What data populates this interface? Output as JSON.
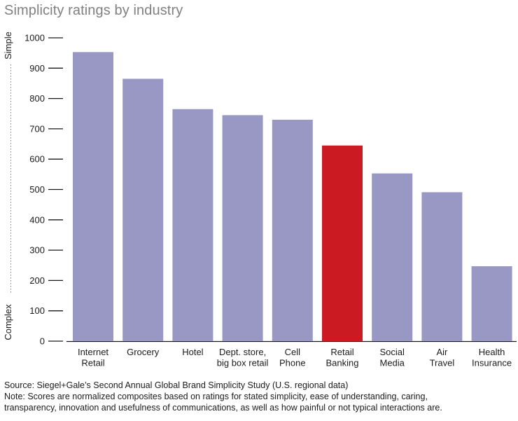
{
  "chart_data": {
    "type": "bar",
    "title": "Simplicity ratings by industry",
    "categories": [
      [
        "Internet",
        "Retail"
      ],
      [
        "Grocery"
      ],
      [
        "Hotel"
      ],
      [
        "Dept. store,",
        "big box retail"
      ],
      [
        "Cell",
        "Phone"
      ],
      [
        "Retail",
        "Banking"
      ],
      [
        "Social",
        "Media"
      ],
      [
        "Air",
        "Travel"
      ],
      [
        "Health",
        "Insurance"
      ]
    ],
    "values": [
      953,
      865,
      765,
      745,
      730,
      645,
      553,
      491,
      247
    ],
    "highlight_index": 5,
    "ylim": [
      0,
      1000
    ],
    "yticks": [
      0,
      100,
      200,
      300,
      400,
      500,
      600,
      700,
      800,
      900,
      1000
    ],
    "ylabel_top": "Simple",
    "ylabel_bottom": "Complex",
    "xlabel": "",
    "grid": false,
    "colors": {
      "bar": "#9997c3",
      "highlight": "#cc1a22",
      "axis": "#1a1a1a"
    }
  },
  "footer": {
    "source": "Source: Siegel+Gale’s Second Annual Global Brand Simplicity Study (U.S. regional data)",
    "note_line1": "Note: Scores are normalized composites based on ratings for stated simplicity, ease of understanding, caring,",
    "note_line2": "transparency, innovation and usefulness of communications, as well as how painful or not typical interactions are."
  }
}
